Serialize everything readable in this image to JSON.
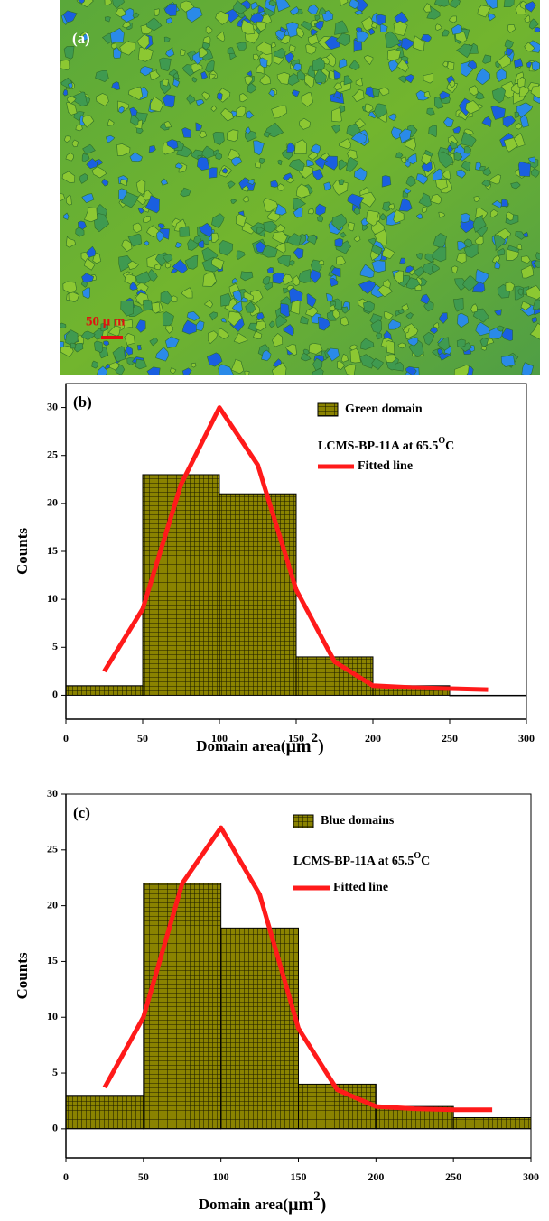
{
  "image": {
    "label": "(a)",
    "scale_bar": "50 μ m"
  },
  "chart_data": [
    {
      "type": "histogram",
      "label": "(b)",
      "bins": [
        0,
        50,
        100,
        150,
        200,
        250,
        300
      ],
      "series": [
        {
          "name": "Green domain",
          "color": "#8a8300",
          "values": [
            1,
            23,
            21,
            4,
            1,
            0
          ]
        },
        {
          "name": "Fitted line",
          "color": "#ff1a1a",
          "x": [
            25,
            50,
            75,
            100,
            125,
            150,
            175,
            200,
            225,
            250,
            275
          ],
          "values": [
            2.5,
            9,
            22,
            30,
            24,
            11,
            3.5,
            1,
            0.8,
            0.7,
            0.6
          ]
        }
      ],
      "annotation": [
        "LCMS-BP-11A at 65.5",
        "O",
        "C"
      ],
      "x_label": [
        "Domain area(",
        "μm",
        "2",
        ")"
      ],
      "y_label": "Counts",
      "xlim": [
        0,
        300
      ],
      "xticks": [
        0,
        50,
        100,
        150,
        200,
        250,
        300
      ],
      "ylim": [
        -2.5,
        32.5
      ],
      "yticks": [
        0,
        5,
        10,
        15,
        20,
        25,
        30
      ]
    },
    {
      "type": "histogram",
      "label": "(c)",
      "bins": [
        0,
        50,
        100,
        150,
        200,
        250,
        300
      ],
      "series": [
        {
          "name": "Blue domains",
          "color": "#8a8300",
          "values": [
            3,
            22,
            18,
            4,
            2,
            1
          ]
        },
        {
          "name": "Fitted line",
          "color": "#ff1a1a",
          "x": [
            25,
            50,
            75,
            100,
            125,
            150,
            175,
            200,
            225,
            250,
            275
          ],
          "values": [
            3.7,
            10,
            22,
            27,
            21,
            9,
            3.5,
            2,
            1.8,
            1.7,
            1.7
          ]
        }
      ],
      "annotation": [
        "LCMS-BP-11A at 65.5",
        "O",
        "C"
      ],
      "x_label": [
        "Domain area(",
        "μm",
        "2",
        ")"
      ],
      "y_label": "Counts",
      "xlim": [
        0,
        300
      ],
      "xticks": [
        0,
        50,
        100,
        150,
        200,
        250,
        300
      ],
      "ylim": [
        -2.6,
        30
      ],
      "yticks": [
        0,
        5,
        10,
        15,
        20,
        25,
        30
      ]
    }
  ]
}
